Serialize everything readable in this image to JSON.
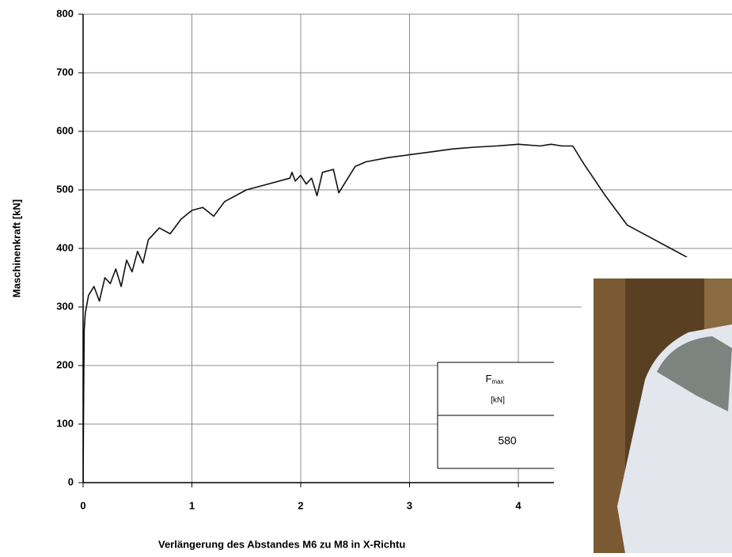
{
  "chart_data": {
    "type": "line",
    "ylabel": "Maschinenkraft [kN]",
    "xlabel": "Verlängerung des Abstandes M6 zu M8 in X-Richtu",
    "xlim": [
      0,
      6
    ],
    "ylim": [
      0,
      800
    ],
    "xticks": [
      0,
      1,
      2,
      3,
      4
    ],
    "yticks": [
      0,
      100,
      200,
      300,
      400,
      500,
      600,
      700,
      800
    ],
    "grid": true,
    "series": [
      {
        "color": "#111111",
        "x": [
          0,
          0.005,
          0.01,
          0.02,
          0.05,
          0.1,
          0.15,
          0.2,
          0.25,
          0.3,
          0.35,
          0.4,
          0.45,
          0.5,
          0.55,
          0.6,
          0.7,
          0.8,
          0.9,
          1.0,
          1.1,
          1.2,
          1.3,
          1.5,
          1.7,
          1.9,
          1.92,
          1.95,
          2.0,
          2.05,
          2.1,
          2.15,
          2.2,
          2.3,
          2.35,
          2.5,
          2.6,
          2.8,
          3.0,
          3.2,
          3.4,
          3.6,
          3.8,
          4.0,
          4.2,
          4.3,
          4.4,
          4.5,
          4.6,
          4.8,
          5.0,
          5.2,
          5.4,
          5.55
        ],
        "values": [
          0,
          150,
          260,
          290,
          320,
          335,
          310,
          350,
          340,
          365,
          335,
          380,
          360,
          395,
          375,
          415,
          435,
          425,
          450,
          465,
          470,
          455,
          480,
          500,
          510,
          520,
          530,
          515,
          525,
          510,
          520,
          490,
          530,
          535,
          495,
          540,
          548,
          555,
          560,
          565,
          570,
          573,
          575,
          578,
          575,
          578,
          575,
          575,
          545,
          490,
          440,
          420,
          400,
          385
        ]
      }
    ],
    "inset_table": {
      "header": "F",
      "header_sub": "max",
      "unit": "[kN]",
      "value": 580
    }
  }
}
